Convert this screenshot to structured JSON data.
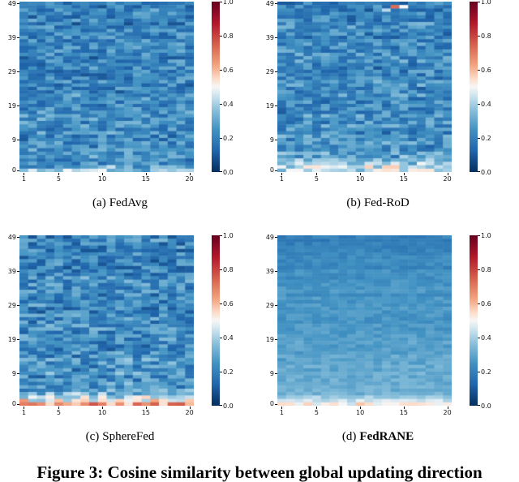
{
  "figure": {
    "caption": "Figure 3: Cosine similarity between global updating direction",
    "panels": [
      {
        "caption_prefix": "(a)",
        "caption_name": "FedAvg",
        "caption_bold": false
      },
      {
        "caption_prefix": "(b)",
        "caption_name": "Fed-RoD",
        "caption_bold": false
      },
      {
        "caption_prefix": "(c)",
        "caption_name": "SphereFed",
        "caption_bold": false
      },
      {
        "caption_prefix": "(d)",
        "caption_name": "FedRANE",
        "caption_bold": true
      }
    ],
    "axes": {
      "x_ticks": [
        1,
        5,
        10,
        15,
        20
      ],
      "y_ticks": [
        0,
        9,
        19,
        29,
        39,
        49
      ]
    },
    "colorbar_ticks": [
      "1.0",
      "0.8",
      "0.6",
      "0.4",
      "0.2",
      "0.0"
    ]
  },
  "chart_data": {
    "type": "heatmap",
    "title": "Cosine similarity between global updating direction",
    "rows": 50,
    "cols": 20,
    "x_range": [
      1,
      20
    ],
    "y_range": [
      0,
      49
    ],
    "value_range": [
      0,
      1
    ],
    "grid": false,
    "colormap": "RdBu_r",
    "colormap_stops": [
      [
        0.0,
        "#053061"
      ],
      [
        0.125,
        "#2166ac"
      ],
      [
        0.25,
        "#4393c3"
      ],
      [
        0.375,
        "#92c5de"
      ],
      [
        0.45,
        "#d1e5f0"
      ],
      [
        0.5,
        "#f7f7f7"
      ],
      [
        0.55,
        "#fddbc7"
      ],
      [
        0.625,
        "#f4a582"
      ],
      [
        0.75,
        "#d6604d"
      ],
      [
        0.875,
        "#b2182b"
      ],
      [
        1.0,
        "#67001f"
      ]
    ],
    "panels": [
      {
        "name": "FedAvg",
        "seed": 11,
        "base": 0.2,
        "noise": 0.11,
        "row_noise": 0.03,
        "grad": 0.03,
        "bottom_rows": 2,
        "bottom_boost": 0.13,
        "approx_mean": 0.22,
        "special_cells": [
          {
            "row": 0,
            "col": 9,
            "value": 0.5
          },
          {
            "row": 1,
            "col": 10,
            "value": 0.44
          },
          {
            "row": 0,
            "col": 16,
            "value": 0.42
          }
        ]
      },
      {
        "name": "Fed-RoD",
        "seed": 27,
        "base": 0.21,
        "noise": 0.11,
        "row_noise": 0.03,
        "grad": 0.03,
        "bottom_rows": 6,
        "bottom_boost": 0.22,
        "approx_mean": 0.24,
        "special_cells": [
          {
            "row": 48,
            "col": 13,
            "value": 0.73
          },
          {
            "row": 48,
            "col": 14,
            "value": 0.5
          },
          {
            "row": 47,
            "col": 12,
            "value": 0.42
          }
        ]
      },
      {
        "name": "SphereFed",
        "seed": 53,
        "base": 0.21,
        "noise": 0.12,
        "row_noise": 0.03,
        "grad": 0.04,
        "bottom_rows": 4,
        "bottom_boost": 0.34,
        "approx_mean": 0.25,
        "special_cells": [
          {
            "row": 0,
            "col": 10,
            "value": 0.55
          }
        ]
      },
      {
        "name": "FedRANE",
        "seed": 77,
        "base": 0.2,
        "noise": 0.035,
        "row_noise": 0.015,
        "grad": 0.13,
        "bottom_rows": 3,
        "bottom_boost": 0.17,
        "approx_mean": 0.3,
        "special_cells": []
      }
    ]
  }
}
